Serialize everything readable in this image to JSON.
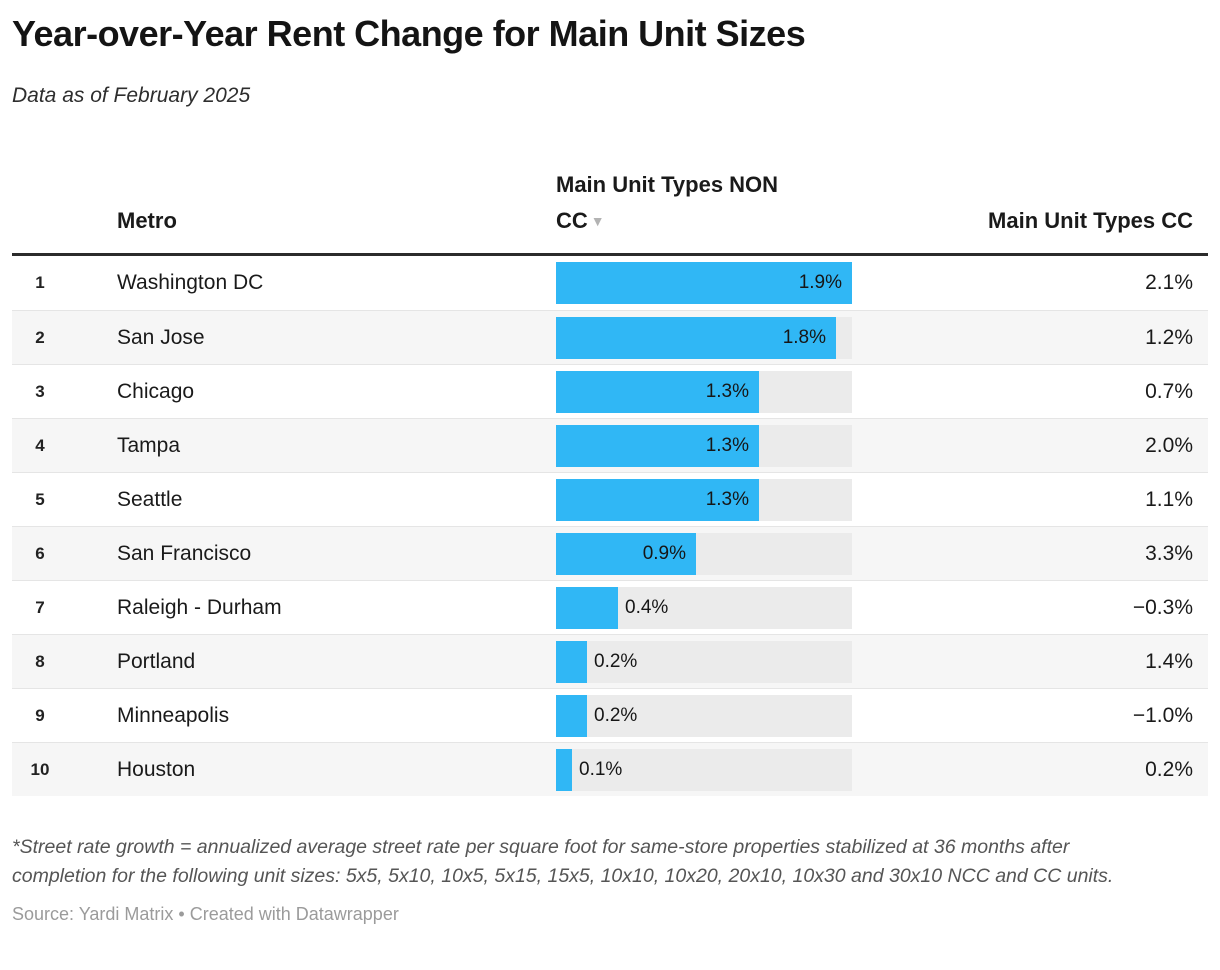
{
  "title": "Year-over-Year Rent Change for Main Unit Sizes",
  "subtitle": "Data as of February 2025",
  "table": {
    "columns": {
      "metro": "Metro",
      "non_cc": "Main Unit Types NON CC",
      "cc": "Main Unit Types CC"
    },
    "sort_icon": "▼"
  },
  "chart_data": {
    "type": "table",
    "title": "Year-over-Year Rent Change for Main Unit Sizes",
    "subtitle": "Data as of February 2025",
    "columns": [
      "Rank",
      "Metro",
      "Main Unit Types NON CC",
      "Main Unit Types CC"
    ],
    "bar_column": "Main Unit Types NON CC",
    "bar_axis_max": 1.9,
    "unit": "%",
    "rows": [
      {
        "rank": "1",
        "metro": "Washington DC",
        "non_cc": 1.9,
        "non_cc_label": "1.9%",
        "cc": 2.1,
        "cc_label": "2.1%"
      },
      {
        "rank": "2",
        "metro": "San Jose",
        "non_cc": 1.8,
        "non_cc_label": "1.8%",
        "cc": 1.2,
        "cc_label": "1.2%"
      },
      {
        "rank": "3",
        "metro": "Chicago",
        "non_cc": 1.3,
        "non_cc_label": "1.3%",
        "cc": 0.7,
        "cc_label": "0.7%"
      },
      {
        "rank": "4",
        "metro": "Tampa",
        "non_cc": 1.3,
        "non_cc_label": "1.3%",
        "cc": 2.0,
        "cc_label": "2.0%"
      },
      {
        "rank": "5",
        "metro": "Seattle",
        "non_cc": 1.3,
        "non_cc_label": "1.3%",
        "cc": 1.1,
        "cc_label": "1.1%"
      },
      {
        "rank": "6",
        "metro": "San Francisco",
        "non_cc": 0.9,
        "non_cc_label": "0.9%",
        "cc": 3.3,
        "cc_label": "3.3%"
      },
      {
        "rank": "7",
        "metro": "Raleigh - Durham",
        "non_cc": 0.4,
        "non_cc_label": "0.4%",
        "cc": -0.3,
        "cc_label": "−0.3%"
      },
      {
        "rank": "8",
        "metro": "Portland",
        "non_cc": 0.2,
        "non_cc_label": "0.2%",
        "cc": 1.4,
        "cc_label": "1.4%"
      },
      {
        "rank": "9",
        "metro": "Minneapolis",
        "non_cc": 0.2,
        "non_cc_label": "0.2%",
        "cc": -1.0,
        "cc_label": "−1.0%"
      },
      {
        "rank": "10",
        "metro": "Houston",
        "non_cc": 0.1,
        "non_cc_label": "0.1%",
        "cc": 0.2,
        "cc_label": "0.2%"
      }
    ]
  },
  "footnote": "*Street rate growth = annualized average street rate per square foot for same-store properties stabilized at 36 months after completion for the following unit sizes: 5x5, 5x10, 10x5, 5x15, 15x5, 10x10, 10x20, 20x10, 10x30 and 30x10 NCC and CC units.",
  "source_line": {
    "source": "Source: Yardi Matrix",
    "separator": " • ",
    "attribution": "Created with Datawrapper"
  },
  "colors": {
    "bar": "#30b7f5",
    "bar_track": "#ebebeb",
    "row_alt": "#f6f6f6",
    "header_rule": "#2b2b2b",
    "footnote_text": "#555555",
    "source_text": "#9b9b9b"
  }
}
